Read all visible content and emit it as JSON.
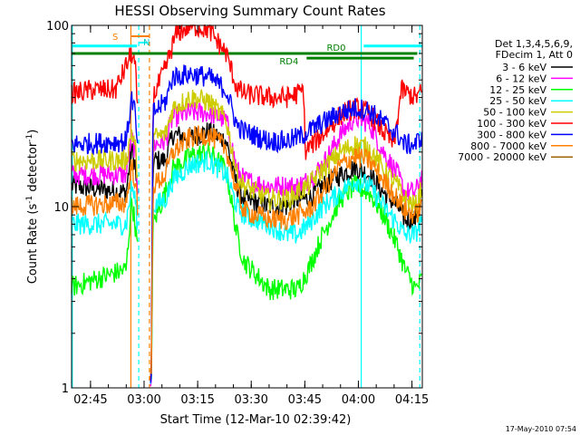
{
  "chart_data": {
    "type": "line",
    "title": "HESSI Observing Summary Count Rates",
    "xlabel": "Start Time (12-Mar-10 02:39:42)",
    "ylabel": "Count Rate (s⁻¹ detector⁻¹)",
    "ylabel_parts": [
      "Count Rate (s",
      "-1",
      " detector",
      "-1",
      ")"
    ],
    "yscale": "log",
    "ylim": [
      1,
      100
    ],
    "xlim_minutes": [
      159.7,
      257.9
    ],
    "x_ticks": [
      {
        "label": "02:45",
        "minutes": 165
      },
      {
        "label": "03:00",
        "minutes": 180
      },
      {
        "label": "03:15",
        "minutes": 195
      },
      {
        "label": "03:30",
        "minutes": 210
      },
      {
        "label": "03:45",
        "minutes": 225
      },
      {
        "label": "04:00",
        "minutes": 240
      },
      {
        "label": "04:15",
        "minutes": 255
      }
    ],
    "y_ticks": [
      {
        "label": "1",
        "value": 1
      },
      {
        "label": "10",
        "value": 10
      },
      {
        "label": "100",
        "value": 100
      }
    ],
    "legend_header": [
      "Det 1,3,4,5,6,9,",
      "FDecim 1, Att 0"
    ],
    "legend_position": "right",
    "series": [
      {
        "name": "3 - 6 keV",
        "color": "#000000",
        "points": [
          [
            159.7,
            13
          ],
          [
            175,
            12
          ],
          [
            176.5,
            21
          ],
          [
            177.5,
            17
          ],
          [
            182,
            1
          ],
          [
            182.5,
            18
          ],
          [
            186,
            18
          ],
          [
            188,
            25
          ],
          [
            193,
            24
          ],
          [
            198,
            26
          ],
          [
            203,
            23
          ],
          [
            206,
            13
          ],
          [
            208,
            11
          ],
          [
            215,
            10
          ],
          [
            220,
            10
          ],
          [
            223,
            11
          ],
          [
            226,
            11
          ],
          [
            230,
            13
          ],
          [
            235,
            15
          ],
          [
            239,
            16.5
          ],
          [
            243,
            15
          ],
          [
            247,
            12
          ],
          [
            251,
            10
          ],
          [
            253,
            8.5
          ],
          [
            256,
            8.5
          ],
          [
            257.9,
            12
          ]
        ]
      },
      {
        "name": "6 - 12 keV",
        "color": "#ff00ff",
        "points": [
          [
            159.7,
            15
          ],
          [
            175,
            15
          ],
          [
            176.5,
            24
          ],
          [
            177.5,
            20
          ],
          [
            182,
            1
          ],
          [
            182.5,
            22
          ],
          [
            186,
            23
          ],
          [
            188,
            31
          ],
          [
            193,
            33
          ],
          [
            198,
            33
          ],
          [
            203,
            30
          ],
          [
            206,
            16
          ],
          [
            208,
            14
          ],
          [
            215,
            13
          ],
          [
            220,
            13
          ],
          [
            223,
            13
          ],
          [
            226,
            14
          ],
          [
            230,
            17
          ],
          [
            235,
            25
          ],
          [
            239,
            31
          ],
          [
            243,
            29
          ],
          [
            247,
            20
          ],
          [
            251,
            15
          ],
          [
            253,
            12
          ],
          [
            256,
            12
          ],
          [
            257.9,
            15
          ]
        ]
      },
      {
        "name": "12 - 25 keV",
        "color": "#00ff00",
        "points": [
          [
            159.7,
            3.6
          ],
          [
            175,
            4.5
          ],
          [
            176.5,
            11
          ],
          [
            177.5,
            8
          ],
          [
            182,
            1
          ],
          [
            182.5,
            8
          ],
          [
            186,
            12
          ],
          [
            188,
            16
          ],
          [
            193,
            19
          ],
          [
            198,
            20
          ],
          [
            203,
            16
          ],
          [
            206,
            7
          ],
          [
            208,
            5
          ],
          [
            215,
            3.5
          ],
          [
            220,
            3.5
          ],
          [
            223,
            3.5
          ],
          [
            226,
            4.5
          ],
          [
            230,
            7
          ],
          [
            235,
            11
          ],
          [
            239,
            13
          ],
          [
            243,
            12
          ],
          [
            247,
            9
          ],
          [
            251,
            6
          ],
          [
            253,
            4.5
          ],
          [
            256,
            3.5
          ],
          [
            257.9,
            4
          ]
        ]
      },
      {
        "name": "25 - 50 keV",
        "color": "#00ffff",
        "points": [
          [
            159.7,
            8
          ],
          [
            175,
            8
          ],
          [
            176.5,
            13
          ],
          [
            177.5,
            11
          ],
          [
            182,
            1
          ],
          [
            182.5,
            10
          ],
          [
            186,
            11
          ],
          [
            188,
            14
          ],
          [
            193,
            17
          ],
          [
            198,
            18
          ],
          [
            203,
            15
          ],
          [
            206,
            10
          ],
          [
            208,
            9
          ],
          [
            215,
            8
          ],
          [
            220,
            7
          ],
          [
            223,
            7
          ],
          [
            226,
            8
          ],
          [
            230,
            10
          ],
          [
            235,
            12
          ],
          [
            239,
            14
          ],
          [
            243,
            13
          ],
          [
            247,
            10
          ],
          [
            251,
            8
          ],
          [
            253,
            7
          ],
          [
            256,
            7
          ],
          [
            257.9,
            9
          ]
        ]
      },
      {
        "name": "50 - 100 keV",
        "color": "#cccc00",
        "points": [
          [
            159.7,
            18
          ],
          [
            175,
            18
          ],
          [
            176.5,
            26
          ],
          [
            177.5,
            22
          ],
          [
            182,
            1
          ],
          [
            182.5,
            24
          ],
          [
            186,
            25
          ],
          [
            188,
            35
          ],
          [
            193,
            40
          ],
          [
            198,
            38
          ],
          [
            203,
            30
          ],
          [
            206,
            15
          ],
          [
            208,
            13
          ],
          [
            215,
            11
          ],
          [
            220,
            11
          ],
          [
            223,
            12
          ],
          [
            226,
            13
          ],
          [
            230,
            16
          ],
          [
            235,
            20
          ],
          [
            239,
            22
          ],
          [
            243,
            21
          ],
          [
            247,
            16
          ],
          [
            251,
            13
          ],
          [
            253,
            11
          ],
          [
            256,
            10
          ],
          [
            257.9,
            13
          ]
        ]
      },
      {
        "name": "100 - 300 keV",
        "color": "#ff0000",
        "points": [
          [
            159.7,
            42
          ],
          [
            165,
            44
          ],
          [
            172,
            44
          ],
          [
            176.5,
            70
          ],
          [
            177.5,
            60
          ],
          [
            182,
            1
          ],
          [
            182.5,
            40
          ],
          [
            186,
            58
          ],
          [
            189,
            90
          ],
          [
            193,
            100
          ],
          [
            198,
            95
          ],
          [
            203,
            70
          ],
          [
            206,
            45
          ],
          [
            208,
            42
          ],
          [
            215,
            40
          ],
          [
            220,
            40
          ],
          [
            223,
            42
          ],
          [
            224.8,
            44
          ],
          [
            225,
            20
          ],
          [
            226,
            21
          ],
          [
            230,
            25
          ],
          [
            235,
            32
          ],
          [
            239,
            35
          ],
          [
            243,
            33
          ],
          [
            247,
            26
          ],
          [
            250,
            22
          ],
          [
            252,
            44
          ],
          [
            256,
            40
          ],
          [
            257.9,
            43
          ]
        ]
      },
      {
        "name": "300 - 800 keV",
        "color": "#0000ff",
        "points": [
          [
            159.7,
            22
          ],
          [
            175,
            23
          ],
          [
            176.5,
            40
          ],
          [
            177.5,
            33
          ],
          [
            182,
            1
          ],
          [
            182.5,
            33
          ],
          [
            186,
            38
          ],
          [
            188,
            52
          ],
          [
            193,
            54
          ],
          [
            198,
            52
          ],
          [
            203,
            44
          ],
          [
            206,
            28
          ],
          [
            208,
            26
          ],
          [
            215,
            23
          ],
          [
            220,
            23
          ],
          [
            223,
            24
          ],
          [
            226,
            26
          ],
          [
            230,
            29
          ],
          [
            235,
            33
          ],
          [
            239,
            35
          ],
          [
            243,
            34
          ],
          [
            247,
            29
          ],
          [
            251,
            25
          ],
          [
            253,
            22
          ],
          [
            256,
            22
          ],
          [
            257.9,
            25
          ]
        ]
      },
      {
        "name": "800 - 7000 keV",
        "color": "#ff8000",
        "points": [
          [
            159.7,
            10
          ],
          [
            175,
            10.5
          ],
          [
            176.5,
            17
          ],
          [
            177.5,
            14
          ],
          [
            182,
            1
          ],
          [
            182.5,
            13
          ],
          [
            186,
            15
          ],
          [
            188,
            20
          ],
          [
            193,
            24
          ],
          [
            198,
            25
          ],
          [
            203,
            21
          ],
          [
            206,
            12
          ],
          [
            208,
            9.5
          ],
          [
            215,
            8.5
          ],
          [
            220,
            8.5
          ],
          [
            223,
            9
          ],
          [
            226,
            9.5
          ],
          [
            230,
            12
          ],
          [
            235,
            17
          ],
          [
            239,
            19
          ],
          [
            243,
            18
          ],
          [
            247,
            14
          ],
          [
            251,
            11
          ],
          [
            253,
            9.5
          ],
          [
            256,
            9
          ],
          [
            257.9,
            10
          ]
        ]
      },
      {
        "name": "7000 - 20000 keV",
        "color": "#996600",
        "points": []
      }
    ],
    "attenuator_markers": {
      "S": {
        "color": "#ff8000",
        "minutes": [
          176.3,
          181.5
        ]
      },
      "N": {
        "color": "#00ffff",
        "minutes": [
          178.5,
          181.0
        ]
      }
    },
    "state_bars": [
      {
        "label": "RD0",
        "color": "#008000",
        "minutes": [
          159.7,
          256.5
        ],
        "value": 70
      },
      {
        "label": "RD4",
        "color": "#008000",
        "minutes": [
          225.5,
          255.5
        ],
        "value": 66
      },
      {
        "label": "",
        "color": "#00ffff",
        "minutes": [
          159.7,
          178.0
        ],
        "value": 77
      },
      {
        "label": "",
        "color": "#00ffff",
        "minutes": [
          241.5,
          257.9
        ],
        "value": 77
      }
    ],
    "vertical_lines": [
      {
        "color": "#00ffff",
        "style": "solid",
        "minutes": 159.9
      },
      {
        "color": "#ff8000",
        "style": "solid",
        "minutes": 176.3
      },
      {
        "color": "#00ffff",
        "style": "dashed",
        "minutes": 178.5
      },
      {
        "color": "#ff8000",
        "style": "dashed",
        "minutes": 181.5
      },
      {
        "color": "#00ffff",
        "style": "solid",
        "minutes": 240.8
      },
      {
        "color": "#00ffff",
        "style": "dashed",
        "minutes": 257.2
      }
    ],
    "grid": false
  },
  "footer": {
    "timestamp": "17-May-2010 07:54"
  }
}
